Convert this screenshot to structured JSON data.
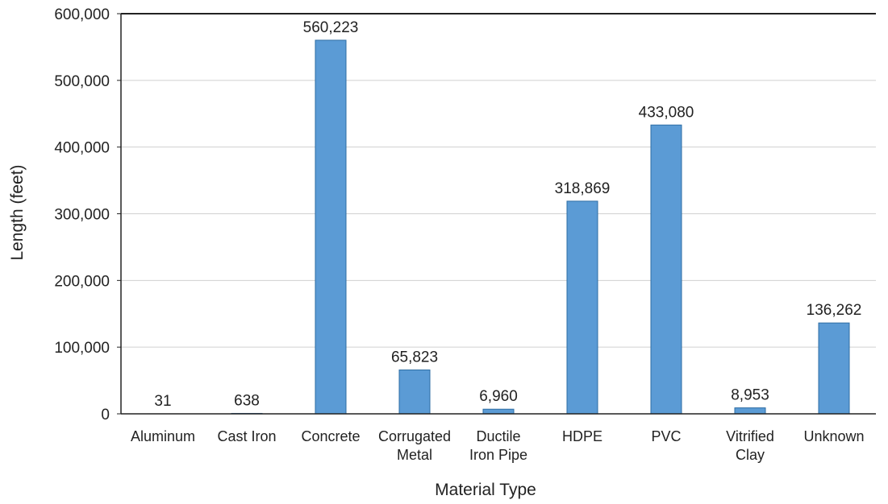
{
  "chart_data": {
    "type": "bar",
    "title": "",
    "xlabel": "Material Type",
    "ylabel": "Length (feet)",
    "ylim": [
      0,
      600000
    ],
    "yticks": [
      0,
      100000,
      200000,
      300000,
      400000,
      500000,
      600000
    ],
    "ytick_labels": [
      "0",
      "100,000",
      "200,000",
      "300,000",
      "400,000",
      "500,000",
      "600,000"
    ],
    "grid": "horizontal",
    "legend": "none",
    "categories": [
      [
        "Aluminum"
      ],
      [
        "Cast Iron"
      ],
      [
        "Concrete"
      ],
      [
        "Corrugated",
        "Metal"
      ],
      [
        "Ductile",
        "Iron Pipe"
      ],
      [
        "HDPE"
      ],
      [
        "PVC"
      ],
      [
        "Vitrified",
        "Clay"
      ],
      [
        "Unknown"
      ]
    ],
    "values": [
      31,
      638,
      560223,
      65823,
      6960,
      318869,
      433080,
      8953,
      136262
    ],
    "data_labels": [
      "31",
      "638",
      "560,223",
      "65,823",
      "6,960",
      "318,869",
      "433,080",
      "8,953",
      "136,262"
    ],
    "colors": {
      "bar": "#5b9bd5",
      "bar_stroke": "#2e6da4",
      "grid": "#d0d0d0",
      "axis": "#222222"
    }
  }
}
